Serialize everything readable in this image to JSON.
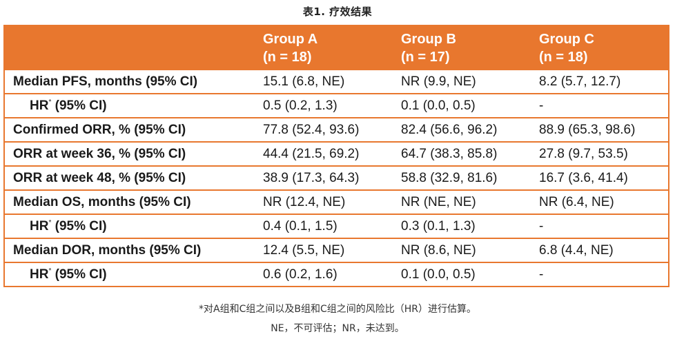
{
  "caption": "表1. 疗效结果",
  "header": {
    "first": "",
    "groups": [
      {
        "name": "Group A",
        "n": "(n = 18)"
      },
      {
        "name": "Group B",
        "n": "(n = 17)"
      },
      {
        "name": "Group C",
        "n": "(n = 18)"
      }
    ]
  },
  "rows": [
    {
      "label": "Median PFS, months (95% CI)",
      "sup": "",
      "suffix": "",
      "values": [
        "15.1 (6.8, NE)",
        "NR (9.9, NE)",
        "8.2 (5.7, 12.7)"
      ]
    },
    {
      "label": "HR",
      "sup": "*",
      "suffix": " (95% CI)",
      "values": [
        "0.5 (0.2, 1.3)",
        "0.1 (0.0, 0.5)",
        "-"
      ]
    },
    {
      "label": "Confirmed ORR, % (95% CI)",
      "sup": "",
      "suffix": "",
      "values": [
        "77.8 (52.4, 93.6)",
        "82.4 (56.6, 96.2)",
        "88.9 (65.3, 98.6)"
      ]
    },
    {
      "label": "ORR at week 36, % (95% CI)",
      "sup": "",
      "suffix": "",
      "values": [
        "44.4 (21.5, 69.2)",
        "64.7 (38.3, 85.8)",
        "27.8 (9.7, 53.5)"
      ]
    },
    {
      "label": "ORR at week 48, % (95% CI)",
      "sup": "",
      "suffix": "",
      "values": [
        "38.9 (17.3, 64.3)",
        "58.8 (32.9, 81.6)",
        "16.7 (3.6, 41.4)"
      ]
    },
    {
      "label": "Median OS, months (95% CI)",
      "sup": "",
      "suffix": "",
      "values": [
        "NR (12.4, NE)",
        "NR (NE, NE)",
        "NR (6.4, NE)"
      ]
    },
    {
      "label": "HR",
      "sup": "*",
      "suffix": " (95% CI)",
      "values": [
        "0.4 (0.1, 1.5)",
        "0.3 (0.1, 1.3)",
        "-"
      ]
    },
    {
      "label": "Median DOR, months (95% CI)",
      "sup": "",
      "suffix": "",
      "values": [
        "12.4 (5.5, NE)",
        "NR (8.6, NE)",
        "6.8 (4.4, NE)"
      ]
    },
    {
      "label": "HR",
      "sup": "*",
      "suffix": " (95% CI)",
      "values": [
        "0.6 (0.2, 1.6)",
        "0.1 (0.0, 0.5)",
        "-"
      ]
    }
  ],
  "footnotes": [
    "*对A组和C组之间以及B组和C组之间的风险比（HR）进行估算。",
    "NE，不可评估；NR，未达到。"
  ],
  "colors": {
    "accent": "#e8772e",
    "header_text": "#ffffff",
    "body_text": "#1a1a1a"
  }
}
